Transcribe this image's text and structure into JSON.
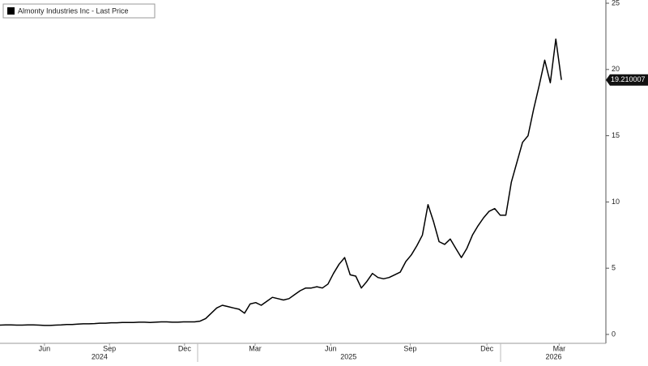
{
  "chart_data": {
    "type": "line",
    "series": [
      {
        "name": "Almonty Industries Inc - Last Price",
        "color": "#000000",
        "values": [
          0.7,
          0.72,
          0.72,
          0.7,
          0.7,
          0.72,
          0.72,
          0.7,
          0.68,
          0.68,
          0.7,
          0.72,
          0.75,
          0.75,
          0.78,
          0.8,
          0.8,
          0.82,
          0.85,
          0.85,
          0.88,
          0.88,
          0.9,
          0.9,
          0.9,
          0.92,
          0.92,
          0.9,
          0.92,
          0.95,
          0.95,
          0.92,
          0.92,
          0.95,
          0.95,
          0.95,
          1.0,
          1.2,
          1.6,
          2.0,
          2.2,
          2.1,
          2.0,
          1.9,
          1.6,
          2.3,
          2.4,
          2.2,
          2.5,
          2.8,
          2.7,
          2.6,
          2.7,
          3.0,
          3.3,
          3.5,
          3.5,
          3.6,
          3.5,
          3.8,
          4.6,
          5.3,
          5.8,
          4.5,
          4.4,
          3.5,
          4.0,
          4.6,
          4.3,
          4.2,
          4.3,
          4.5,
          4.7,
          5.5,
          6.0,
          6.7,
          7.5,
          9.8,
          8.5,
          7.0,
          6.8,
          7.2,
          6.5,
          5.8,
          6.5,
          7.5,
          8.2,
          8.8,
          9.3,
          9.5,
          9.0,
          9.0,
          11.5,
          13.0,
          14.5,
          15.0,
          17.0,
          18.8,
          20.7,
          19.0,
          22.3,
          19.210007
        ]
      }
    ],
    "xlim": [
      0,
      109
    ],
    "xticks": [
      {
        "value": 8.0,
        "label": "Jun"
      },
      {
        "value": 19.7,
        "label": "Sep"
      },
      {
        "value": 33.2,
        "label": "Dec"
      },
      {
        "value": 45.9,
        "label": "Mar"
      },
      {
        "value": 59.5,
        "label": "Jun"
      },
      {
        "value": 73.8,
        "label": "Sep"
      },
      {
        "value": 87.6,
        "label": "Dec"
      },
      {
        "value": 100.6,
        "label": "Mar"
      }
    ],
    "year_ticks": [
      {
        "value": 17.9,
        "label": "2024"
      },
      {
        "value": 62.7,
        "label": "2025"
      },
      {
        "value": 99.6,
        "label": "2026"
      }
    ],
    "ylim": [
      0,
      25
    ],
    "yticks": [
      0,
      5,
      10,
      15,
      20,
      25
    ],
    "grid": false
  }
}
